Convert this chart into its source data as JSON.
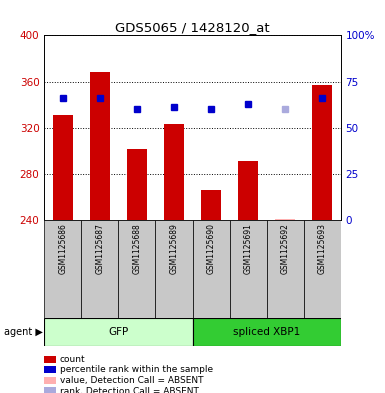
{
  "title": "GDS5065 / 1428120_at",
  "samples": [
    "GSM1125686",
    "GSM1125687",
    "GSM1125688",
    "GSM1125689",
    "GSM1125690",
    "GSM1125691",
    "GSM1125692",
    "GSM1125693"
  ],
  "bar_values": [
    331,
    368,
    302,
    323,
    266,
    291,
    null,
    357
  ],
  "bar_absent_values": [
    null,
    null,
    null,
    null,
    null,
    null,
    241,
    null
  ],
  "percentile_values": [
    66,
    66,
    60,
    61,
    60,
    63,
    null,
    66
  ],
  "percentile_absent_values": [
    null,
    null,
    null,
    null,
    null,
    null,
    60,
    null
  ],
  "bar_color": "#cc0000",
  "bar_absent_color": "#ffb0b0",
  "percentile_color": "#0000cc",
  "percentile_absent_color": "#aaaadd",
  "ylim_left": [
    240,
    400
  ],
  "ylim_right": [
    0,
    100
  ],
  "yticks_left": [
    240,
    280,
    320,
    360,
    400
  ],
  "yticks_right": [
    0,
    25,
    50,
    75,
    100
  ],
  "ytick_labels_left": [
    "240",
    "280",
    "320",
    "360",
    "400"
  ],
  "ytick_labels_right": [
    "0",
    "25",
    "50",
    "75",
    "100%"
  ],
  "groups": [
    {
      "label": "GFP",
      "start": 0,
      "end": 4,
      "color": "#ccffcc"
    },
    {
      "label": "spliced XBP1",
      "start": 4,
      "end": 8,
      "color": "#33cc33"
    }
  ],
  "group_row_color": "#c8c8c8",
  "background_color": "#ffffff",
  "plot_bg_color": "#ffffff",
  "dotted_grid_color": "#000000",
  "bar_width": 0.55,
  "percentile_marker_size": 5,
  "left_yaxis_color": "#cc0000",
  "right_yaxis_color": "#0000cc",
  "legend_items": [
    {
      "color": "#cc0000",
      "label": "count"
    },
    {
      "color": "#0000cc",
      "label": "percentile rank within the sample"
    },
    {
      "color": "#ffb0b0",
      "label": "value, Detection Call = ABSENT"
    },
    {
      "color": "#aaaadd",
      "label": "rank, Detection Call = ABSENT"
    }
  ]
}
